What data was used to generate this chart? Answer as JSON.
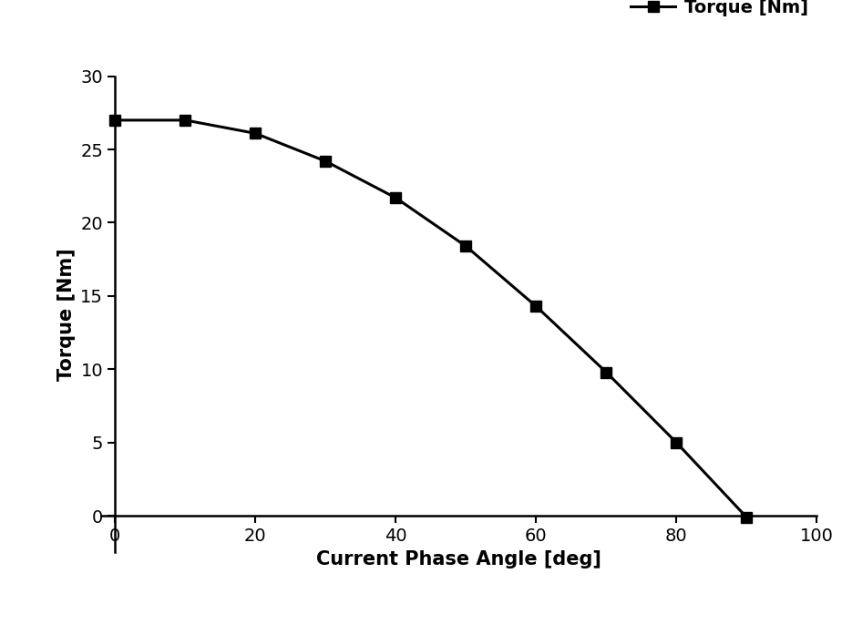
{
  "x": [
    0,
    10,
    20,
    30,
    40,
    50,
    60,
    70,
    80,
    90
  ],
  "y": [
    27.0,
    27.0,
    26.1,
    24.2,
    21.7,
    18.4,
    14.3,
    9.8,
    5.0,
    -0.1
  ],
  "line_color": "#000000",
  "marker": "s",
  "marker_color": "#000000",
  "marker_size": 9,
  "line_width": 2.2,
  "xlabel": "Current Phase Angle [deg]",
  "ylabel": "Torque [Nm]",
  "legend_label": "Torque [Nm]",
  "xlim": [
    -2,
    100
  ],
  "ylim": [
    -2.5,
    30
  ],
  "xticks": [
    0,
    20,
    40,
    60,
    80,
    100
  ],
  "yticks": [
    0,
    5,
    10,
    15,
    20,
    25,
    30
  ],
  "background_color": "#ffffff",
  "xlabel_fontsize": 15,
  "ylabel_fontsize": 15,
  "tick_fontsize": 14,
  "legend_fontsize": 14
}
